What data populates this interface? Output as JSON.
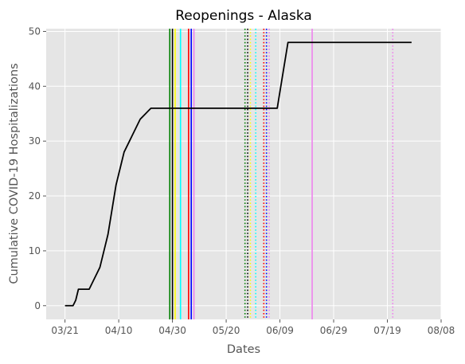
{
  "chart_data": {
    "type": "line",
    "title": "Reopenings - Alaska",
    "xlabel": "Dates",
    "ylabel": "Cumulative COVID-19 Hospitalizations",
    "x_ticks": [
      "03/21",
      "04/10",
      "04/30",
      "05/20",
      "06/09",
      "06/29",
      "07/19",
      "08/08"
    ],
    "y_ticks": [
      0,
      10,
      20,
      30,
      40,
      50
    ],
    "xlim": [
      "2020-03-14",
      "2020-08-08"
    ],
    "ylim": [
      -2.5,
      50.5
    ],
    "grid": true,
    "background": "#e5e5e5",
    "series": [
      {
        "color": "#000000",
        "points": [
          [
            "2020-03-21",
            0
          ],
          [
            "2020-03-22",
            0
          ],
          [
            "2020-03-23",
            0
          ],
          [
            "2020-03-24",
            0
          ],
          [
            "2020-03-25",
            1
          ],
          [
            "2020-03-26",
            3
          ],
          [
            "2020-03-27",
            3
          ],
          [
            "2020-03-28",
            3
          ],
          [
            "2020-03-29",
            3
          ],
          [
            "2020-03-30",
            3
          ],
          [
            "2020-03-31",
            4
          ],
          [
            "2020-04-01",
            5
          ],
          [
            "2020-04-02",
            6
          ],
          [
            "2020-04-03",
            7
          ],
          [
            "2020-04-04",
            9
          ],
          [
            "2020-04-05",
            11
          ],
          [
            "2020-04-06",
            13
          ],
          [
            "2020-04-07",
            16
          ],
          [
            "2020-04-08",
            19
          ],
          [
            "2020-04-09",
            22
          ],
          [
            "2020-04-10",
            24
          ],
          [
            "2020-04-11",
            26
          ],
          [
            "2020-04-12",
            28
          ],
          [
            "2020-04-13",
            29
          ],
          [
            "2020-04-14",
            30
          ],
          [
            "2020-04-15",
            31
          ],
          [
            "2020-04-16",
            32
          ],
          [
            "2020-04-17",
            33
          ],
          [
            "2020-04-18",
            34
          ],
          [
            "2020-04-19",
            34.5
          ],
          [
            "2020-04-20",
            35
          ],
          [
            "2020-04-21",
            35.5
          ],
          [
            "2020-04-22",
            36
          ],
          [
            "2020-04-23",
            36
          ],
          [
            "2020-06-08",
            36
          ],
          [
            "2020-06-12",
            48
          ],
          [
            "2020-07-28",
            48
          ]
        ]
      }
    ],
    "vlines": [
      {
        "x": "2020-04-29",
        "color": "#008000",
        "style": "solid"
      },
      {
        "x": "2020-04-30",
        "color": "#000000",
        "style": "solid"
      },
      {
        "x": "2020-05-01",
        "color": "#ffff00",
        "style": "solid"
      },
      {
        "x": "2020-05-03",
        "color": "#00ffff",
        "style": "solid"
      },
      {
        "x": "2020-05-06",
        "color": "#ff0000",
        "style": "solid"
      },
      {
        "x": "2020-05-07",
        "color": "#0000ff",
        "style": "solid"
      },
      {
        "x": "2020-05-08",
        "color": "#ee82ee",
        "style": "solid"
      },
      {
        "x": "2020-05-27",
        "color": "#008000",
        "style": "dotted"
      },
      {
        "x": "2020-05-28",
        "color": "#000000",
        "style": "dotted"
      },
      {
        "x": "2020-05-29",
        "color": "#ffff00",
        "style": "dotted"
      },
      {
        "x": "2020-05-31",
        "color": "#00ffff",
        "style": "dotted"
      },
      {
        "x": "2020-06-03",
        "color": "#ff0000",
        "style": "dotted"
      },
      {
        "x": "2020-06-04",
        "color": "#0000ff",
        "style": "dotted"
      },
      {
        "x": "2020-06-05",
        "color": "#ee82ee",
        "style": "dotted"
      },
      {
        "x": "2020-06-21",
        "color": "#ee82ee",
        "style": "solid"
      },
      {
        "x": "2020-07-21",
        "color": "#ee82ee",
        "style": "dotted"
      }
    ]
  }
}
